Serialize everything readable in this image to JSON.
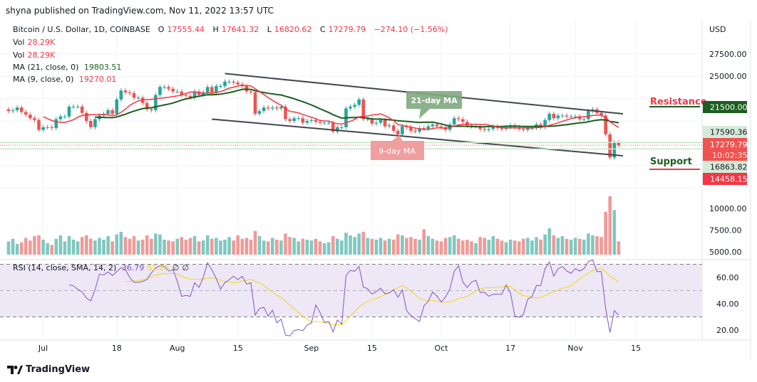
{
  "header": {
    "published": "shyna published on TradingView.com, Nov 11, 2022 13:57 UTC"
  },
  "legend": {
    "symbol": "Bitcoin / U.S. Dollar, 1D, COINBASE",
    "o_label": "O",
    "o": "17555.44",
    "h_label": "H",
    "h": "17641.32",
    "l_label": "L",
    "l": "16820.62",
    "c_label": "C",
    "c": "17279.79",
    "change": "−274.10 (−1.56%)",
    "vol1_label": "Vol",
    "vol1": "28.29K",
    "vol2_label": "Vol",
    "vol2": "28.29K",
    "ma21_label": "MA (21, close, 0)",
    "ma21": "19803.51",
    "ma9_label": "MA (9, close, 0)",
    "ma9": "19270.01",
    "rsi_label": "RSI (14, close, SMA, 14, 2)",
    "rsi": "36.79",
    "rsi_sma": "51.85",
    "rsi_extra1": "∅",
    "rsi_extra2": "∅"
  },
  "annotations": {
    "ma21_box": "21-day MA",
    "ma9_box": "9-day MA",
    "resistance": "Resistance",
    "support": "Support"
  },
  "price_labels": {
    "currency": "USD",
    "resistance": "21500.00",
    "high_line": "17590.36",
    "last": "17279.79",
    "countdown": "10:02:35",
    "low_line": "16863.82",
    "support": "14458.15"
  },
  "footer": {
    "brand": "TradingView"
  },
  "colors": {
    "up": "#26a69a",
    "down": "#ef5350",
    "ma21": "#1b5e20",
    "ma9": "#f23645",
    "rsi": "#7e57c2",
    "rsi_sma": "#f5d90a",
    "rsi_band": "#ede7f6",
    "trend": "#434651"
  },
  "chart_data": {
    "type": "candlestick",
    "start_date": "2022-06-23",
    "end_date": "2022-11-11",
    "closes": [
      21100,
      21200,
      21500,
      21000,
      20700,
      20300,
      20100,
      19000,
      19300,
      19300,
      19200,
      20200,
      20500,
      20500,
      21600,
      21600,
      21600,
      20900,
      20000,
      19300,
      20200,
      20600,
      20800,
      21200,
      20800,
      22400,
      23400,
      23200,
      23100,
      22600,
      22600,
      22000,
      21300,
      21200,
      22900,
      23800,
      23800,
      23600,
      23300,
      23300,
      22900,
      22800,
      22600,
      23300,
      22900,
      23200,
      23800,
      23200,
      23900,
      23900,
      24400,
      24400,
      24300,
      24100,
      23900,
      23300,
      23200,
      20800,
      21100,
      21500,
      21400,
      21500,
      21400,
      21600,
      20200,
      20000,
      20300,
      20300,
      19800,
      20000,
      20100,
      19900,
      19800,
      19800,
      19800,
      18800,
      19300,
      19300,
      21400,
      21600,
      21800,
      22400,
      20200,
      20200,
      19700,
      19800,
      20100,
      19400,
      19500,
      18900,
      18500,
      19400,
      19300,
      18900,
      18800,
      19200,
      19100,
      19400,
      19600,
      19400,
      19300,
      19000,
      19600,
      20300,
      20200,
      19900,
      19500,
      19400,
      19400,
      19100,
      19000,
      19100,
      19400,
      19200,
      19100,
      19300,
      19500,
      19300,
      19100,
      19000,
      19200,
      19200,
      19600,
      19300,
      20100,
      20800,
      20300,
      20600,
      20600,
      20500,
      20500,
      20500,
      20200,
      20200,
      21100,
      21300,
      20900,
      20600,
      18500,
      15900,
      17590.36,
      17279.79
    ],
    "volumes": [
      6200,
      6500,
      5900,
      6100,
      6600,
      6300,
      6800,
      6900,
      6400,
      6000,
      5800,
      6500,
      6900,
      6200,
      6800,
      6400,
      6200,
      6700,
      6900,
      6500,
      6300,
      6600,
      6400,
      6800,
      6200,
      7000,
      7300,
      6700,
      6500,
      6800,
      6300,
      6400,
      6900,
      6500,
      7100,
      7000,
      6400,
      6300,
      6200,
      6500,
      6700,
      6400,
      6600,
      6800,
      6200,
      6300,
      6900,
      6500,
      6600,
      6300,
      6400,
      6700,
      6300,
      6900,
      6500,
      6600,
      6400,
      7400,
      6800,
      6300,
      6200,
      6600,
      6400,
      6300,
      7100,
      6700,
      6600,
      6200,
      6500,
      6400,
      6300,
      6500,
      6200,
      6000,
      6100,
      6800,
      6500,
      6300,
      7200,
      6900,
      6700,
      7100,
      7300,
      6600,
      6500,
      6400,
      6600,
      6300,
      6500,
      6400,
      7000,
      6900,
      6600,
      6700,
      6500,
      6400,
      7600,
      6800,
      6500,
      6300,
      6200,
      6600,
      6700,
      6900,
      6500,
      6300,
      6400,
      6200,
      6000,
      6700,
      6600,
      6400,
      6800,
      6500,
      6300,
      6100,
      6400,
      6300,
      6200,
      6500,
      6600,
      6300,
      6700,
      6400,
      7000,
      7700,
      6900,
      6600,
      6800,
      6500,
      6400,
      6600,
      6500,
      6400,
      7100,
      6900,
      6800,
      6700,
      9600,
      11400,
      9800,
      6200
    ],
    "price_axis": {
      "ticks": [
        27500,
        25000,
        22500,
        20000,
        17500,
        15000,
        12500
      ],
      "range": [
        11500,
        28500
      ]
    },
    "volume_axis": {
      "ticks": [
        10000,
        7500,
        5000
      ]
    },
    "rsi_axis": {
      "ticks": [
        60,
        40,
        20
      ],
      "band": [
        30,
        70
      ]
    },
    "time_ticks": [
      {
        "label": "Jul",
        "date": "2022-07-01"
      },
      {
        "label": "18",
        "date": "2022-07-18"
      },
      {
        "label": "Aug",
        "date": "2022-08-01"
      },
      {
        "label": "15",
        "date": "2022-08-15"
      },
      {
        "label": "Sep",
        "date": "2022-09-01"
      },
      {
        "label": "15",
        "date": "2022-09-15"
      },
      {
        "label": "Oct",
        "date": "2022-10-01"
      },
      {
        "label": "17",
        "date": "2022-10-17"
      },
      {
        "label": "Nov",
        "date": "2022-11-01"
      },
      {
        "label": "15",
        "date": "2022-11-15"
      }
    ],
    "trendlines": [
      {
        "name": "upper-channel",
        "from": {
          "date": "2022-08-12",
          "price": 25300
        },
        "to": {
          "date": "2022-11-12",
          "price": 20800
        }
      },
      {
        "name": "lower-channel",
        "from": {
          "date": "2022-08-09",
          "price": 20200
        },
        "to": {
          "date": "2022-11-12",
          "price": 16100
        }
      }
    ],
    "resistance": 21500,
    "support": 14458.15
  }
}
